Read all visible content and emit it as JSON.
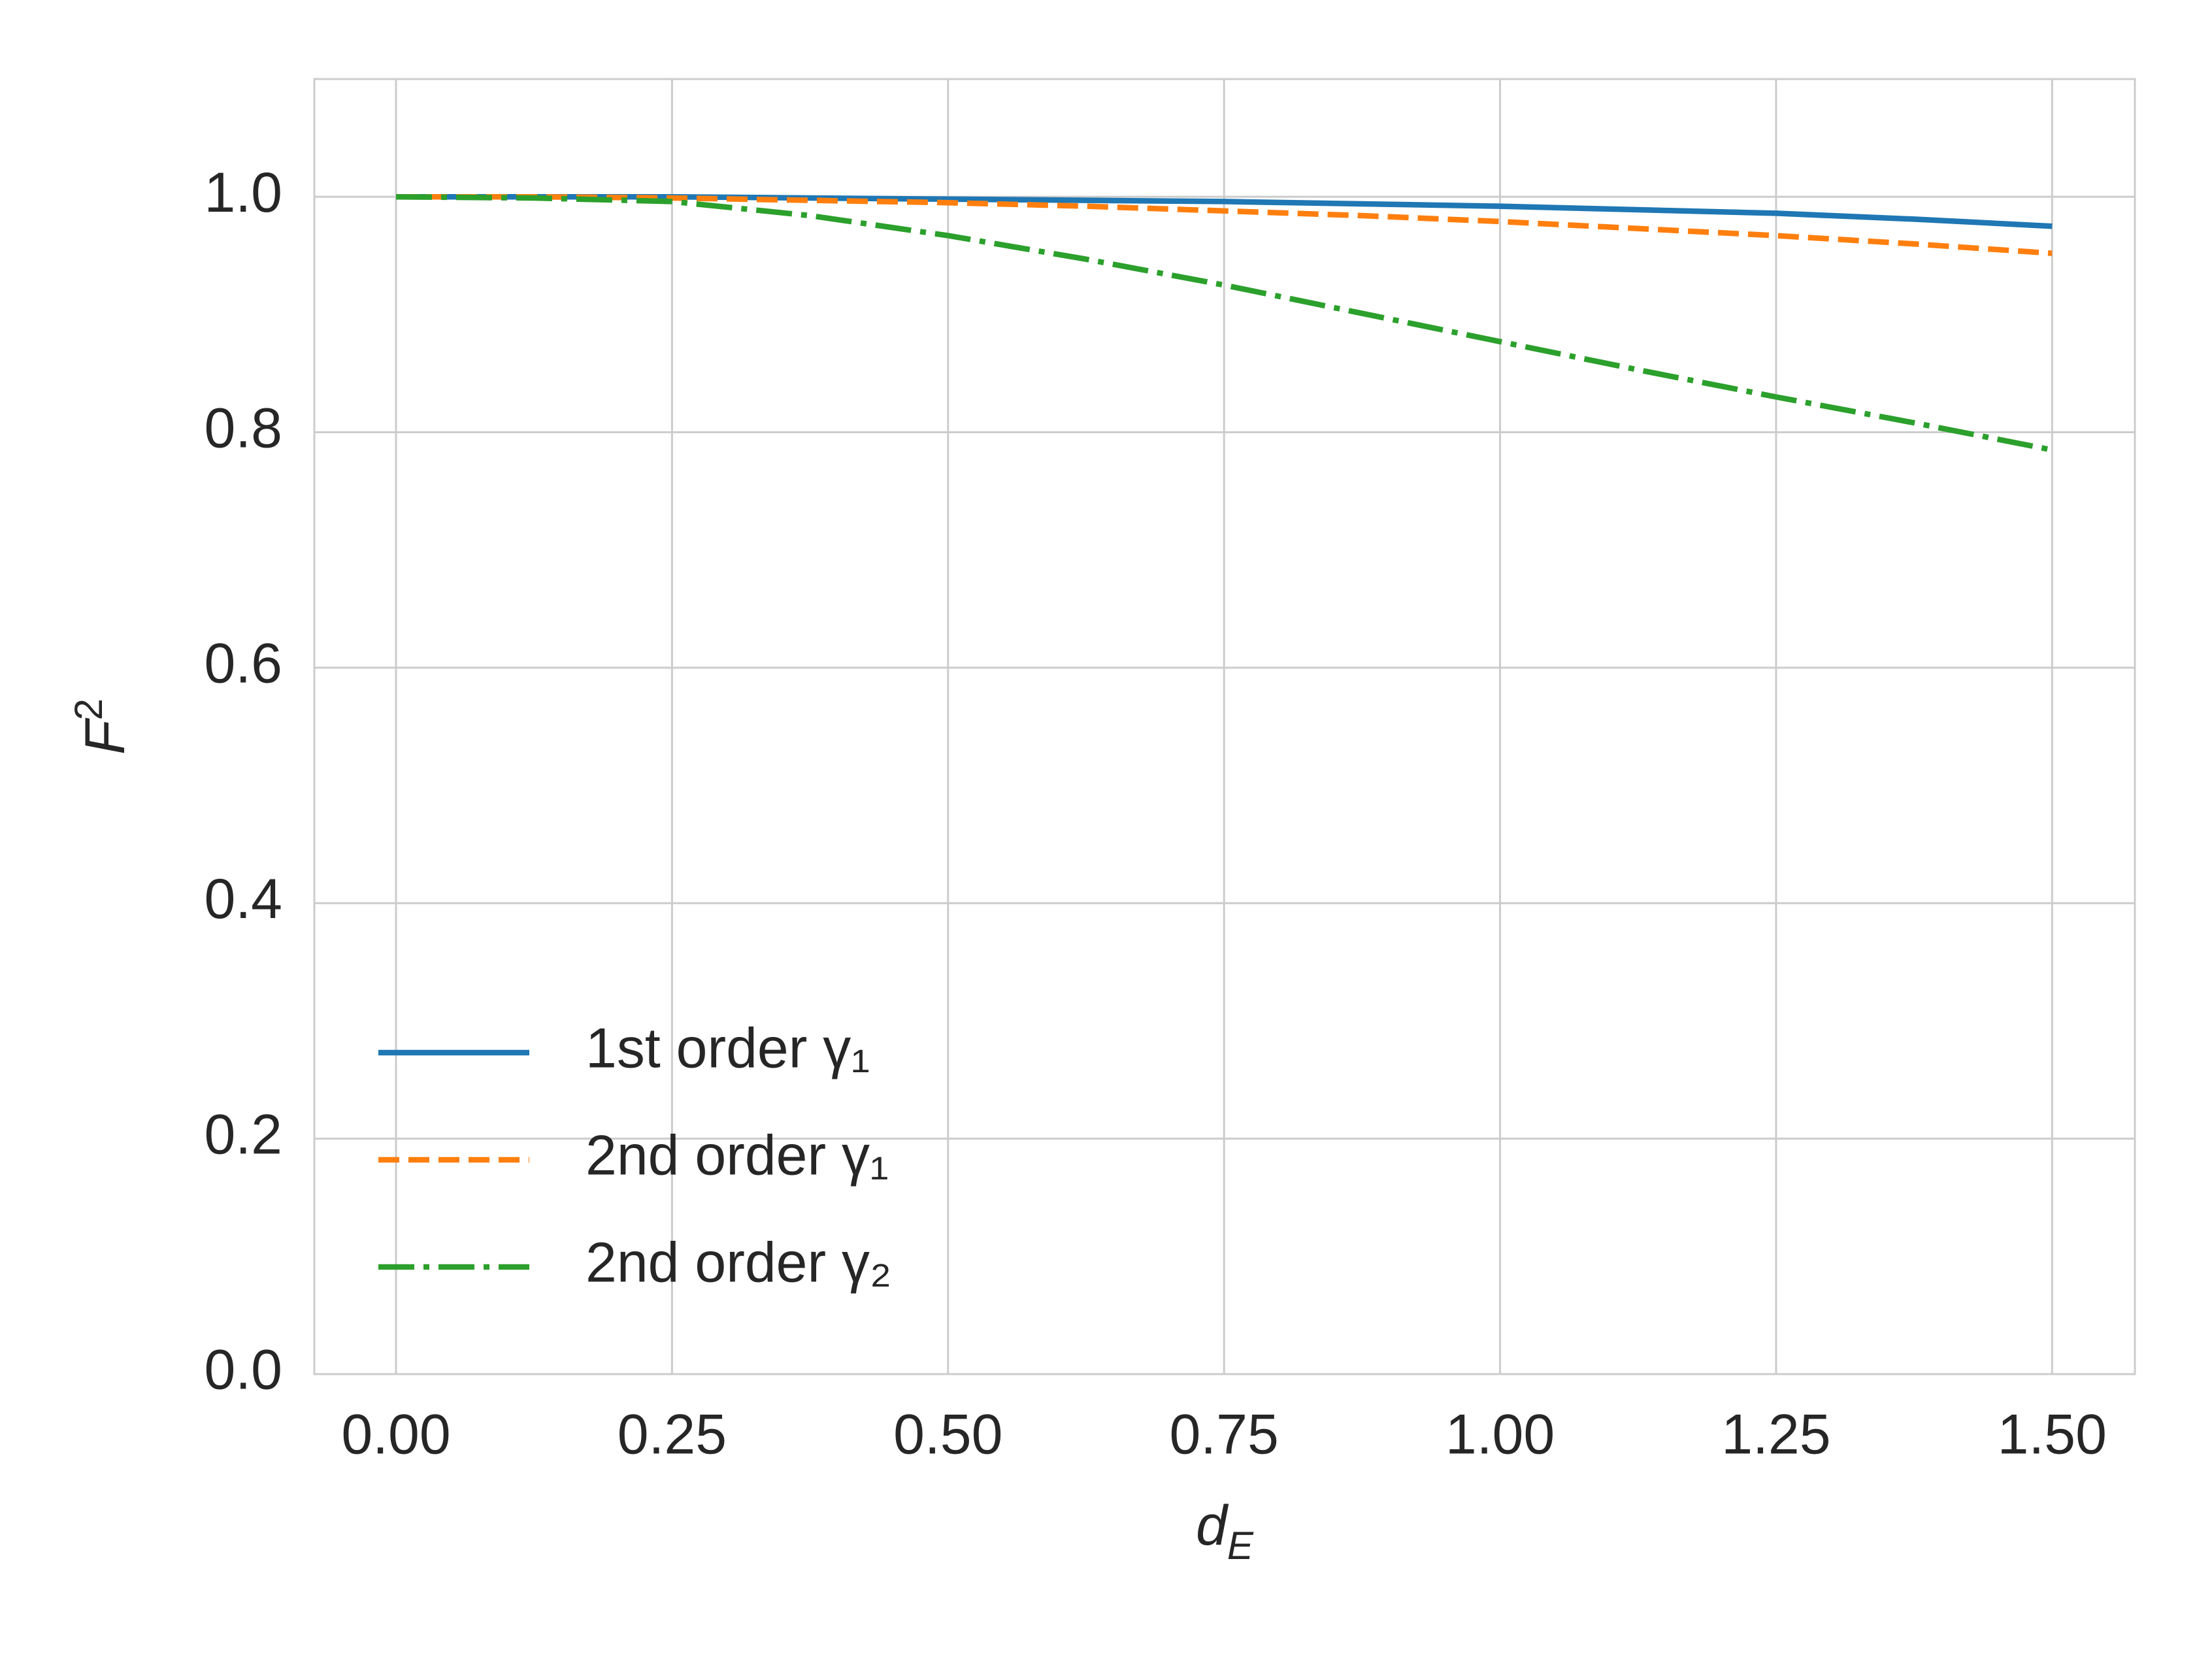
{
  "chart_data": {
    "type": "line",
    "xlabel": {
      "base": "d",
      "sub": "E"
    },
    "ylabel": {
      "base": "F",
      "sup": "2"
    },
    "x": [
      0,
      0.125,
      0.25,
      0.375,
      0.5,
      0.625,
      0.75,
      0.875,
      1.0,
      1.125,
      1.25,
      1.375,
      1.5
    ],
    "series": [
      {
        "name": "1st order γ₁",
        "color": "#1f77b4",
        "linestyle": "solid",
        "values": [
          1.0,
          1.0,
          1.0,
          0.999,
          0.998,
          0.997,
          0.996,
          0.994,
          0.992,
          0.989,
          0.986,
          0.981,
          0.975
        ]
      },
      {
        "name": "2nd order γ₁",
        "color": "#ff7f0e",
        "linestyle": "dashed",
        "values": [
          1.0,
          1.0,
          0.999,
          0.997,
          0.995,
          0.992,
          0.988,
          0.984,
          0.979,
          0.973,
          0.967,
          0.96,
          0.952
        ]
      },
      {
        "name": "2nd order γ₂",
        "color": "#2ca02c",
        "linestyle": "dashdot",
        "values": [
          1.0,
          0.999,
          0.996,
          0.984,
          0.967,
          0.947,
          0.925,
          0.901,
          0.877,
          0.853,
          0.83,
          0.808,
          0.785
        ]
      }
    ],
    "xlim": [
      -0.074,
      1.575
    ],
    "ylim": [
      0,
      1.1
    ],
    "xticks": [
      {
        "value": 0,
        "label": "0.00"
      },
      {
        "value": 0.25,
        "label": "0.25"
      },
      {
        "value": 0.5,
        "label": "0.50"
      },
      {
        "value": 0.75,
        "label": "0.75"
      },
      {
        "value": 1,
        "label": "1.00"
      },
      {
        "value": 1.25,
        "label": "1.25"
      },
      {
        "value": 1.5,
        "label": "1.50"
      }
    ],
    "yticks": [
      {
        "value": 0,
        "label": "0.0"
      },
      {
        "value": 0.2,
        "label": "0.2"
      },
      {
        "value": 0.4,
        "label": "0.4"
      },
      {
        "value": 0.6,
        "label": "0.6"
      },
      {
        "value": 0.8,
        "label": "0.8"
      },
      {
        "value": 1,
        "label": "1.0"
      }
    ],
    "grid": true,
    "legend": "lower left"
  }
}
